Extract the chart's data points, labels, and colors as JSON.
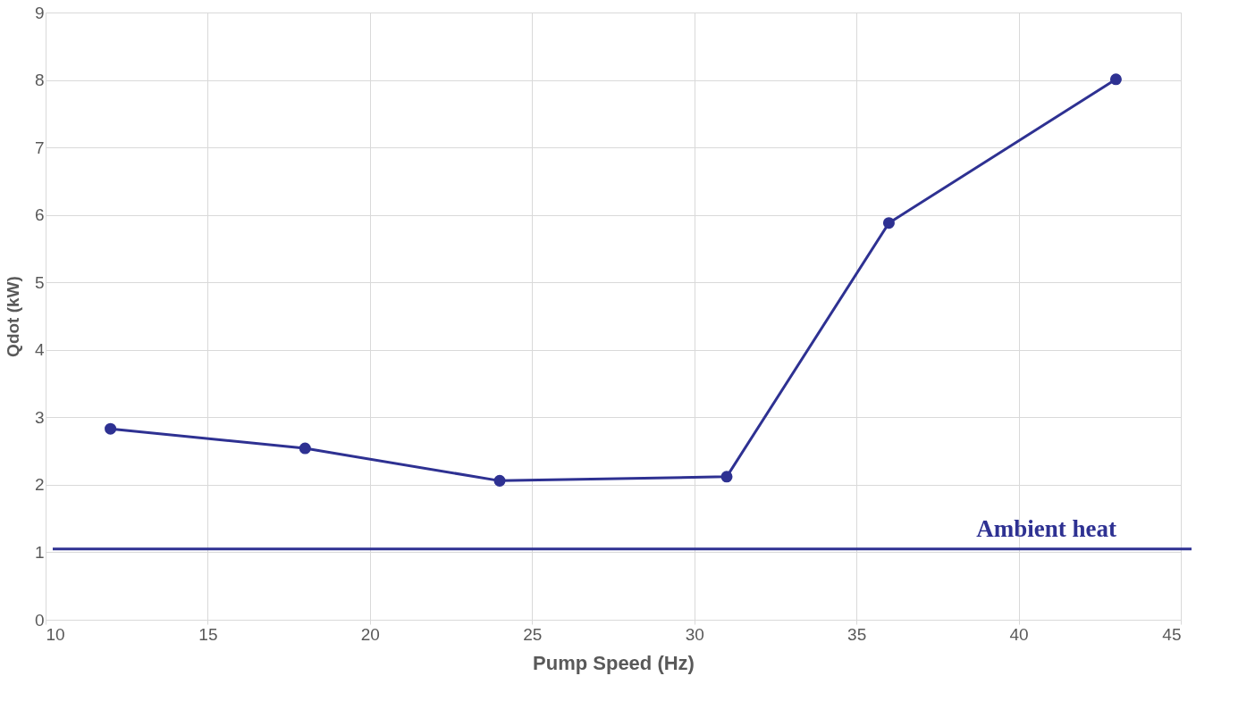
{
  "chart_data": {
    "type": "line",
    "xlabel": "Pump Speed (Hz)",
    "ylabel": "Qdot (kW)",
    "x": [
      12,
      18,
      24,
      31,
      36,
      43
    ],
    "series": [
      {
        "color": "#2e3192",
        "values": [
          2.83,
          2.54,
          2.06,
          2.12,
          5.88,
          8.01
        ]
      }
    ],
    "xlim": [
      10,
      45
    ],
    "xticks": [
      10,
      15,
      20,
      25,
      30,
      35,
      40,
      45
    ],
    "ylim": [
      0,
      9
    ],
    "yticks": [
      0,
      1,
      2,
      3,
      4,
      5,
      6,
      7,
      8,
      9
    ],
    "ref_lines": [
      {
        "axis": "y",
        "value": 1.05,
        "label": "Ambient heat",
        "color": "#2e3192"
      }
    ],
    "grid": true,
    "marker": "circle",
    "line_style": "solid"
  }
}
